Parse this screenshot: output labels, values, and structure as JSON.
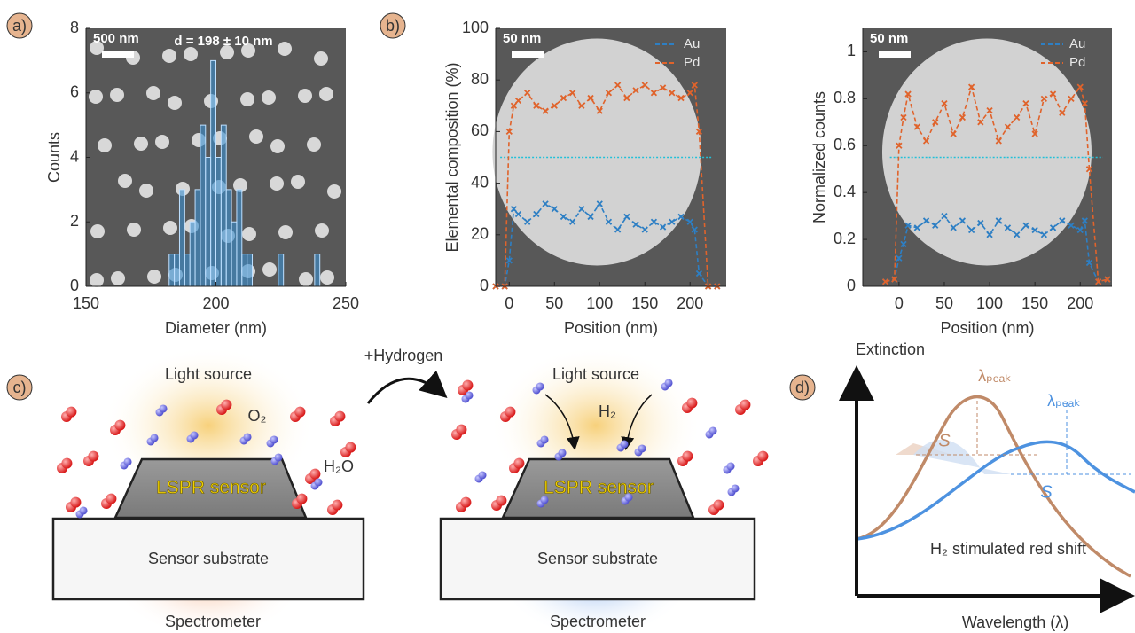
{
  "chart_data": [
    {
      "type": "histogram",
      "panel_label": "a)",
      "scale_bar": "500 nm",
      "annotation": "d = 198 ± 10 nm",
      "xlabel": "Diameter (nm)",
      "ylabel": "Counts",
      "color": "#3a8fd0",
      "bins": [
        182,
        184,
        186,
        188,
        190,
        192,
        194,
        196,
        198,
        200,
        202,
        204,
        206,
        208,
        210,
        212,
        214,
        216,
        218,
        220,
        222,
        224,
        226,
        228,
        230,
        232,
        234,
        236,
        238,
        240
      ],
      "values": [
        1,
        1,
        3,
        1,
        2,
        3,
        5,
        4,
        7,
        4,
        5,
        3,
        2,
        3,
        1,
        1,
        0,
        0,
        0,
        0,
        0,
        1,
        0,
        0,
        0,
        0,
        0,
        0,
        1
      ],
      "xlim": [
        150,
        250
      ],
      "ylim": [
        0,
        8
      ],
      "xticks": [
        150,
        200,
        250
      ],
      "yticks": [
        0,
        2,
        4,
        6,
        8
      ]
    },
    {
      "type": "line",
      "panel_label": "b)",
      "scale_bar": "50 nm",
      "xlabel": "Position (nm)",
      "ylabel": "Elemental composition (%)",
      "x": [
        -15,
        -5,
        0,
        5,
        10,
        20,
        30,
        40,
        50,
        60,
        70,
        80,
        90,
        100,
        110,
        120,
        130,
        140,
        150,
        160,
        170,
        180,
        190,
        200,
        205,
        210,
        220,
        230
      ],
      "series": [
        {
          "name": "Au",
          "color": "#2d7fc4",
          "values": [
            0,
            0,
            10,
            30,
            28,
            25,
            28,
            32,
            30,
            27,
            25,
            30,
            27,
            32,
            25,
            22,
            27,
            24,
            22,
            25,
            23,
            25,
            27,
            25,
            22,
            5,
            0,
            0
          ]
        },
        {
          "name": "Pd",
          "color": "#e0632b",
          "values": [
            0,
            0,
            60,
            70,
            72,
            75,
            70,
            68,
            70,
            73,
            75,
            70,
            73,
            68,
            75,
            78,
            73,
            76,
            78,
            75,
            77,
            75,
            73,
            75,
            78,
            60,
            0,
            0
          ]
        }
      ],
      "reference_line": {
        "value": 50,
        "color": "#22c0d8"
      },
      "xlim": [
        -15,
        240
      ],
      "ylim": [
        0,
        100
      ],
      "xticks": [
        0,
        50,
        100,
        150,
        200
      ],
      "yticks": [
        0,
        20,
        40,
        60,
        80,
        100
      ]
    },
    {
      "type": "line",
      "scale_bar": "50 nm",
      "xlabel": "Position (nm)",
      "ylabel": "Normalized counts",
      "x": [
        -15,
        -5,
        0,
        5,
        10,
        20,
        30,
        40,
        50,
        60,
        70,
        80,
        90,
        100,
        110,
        120,
        130,
        140,
        150,
        160,
        170,
        180,
        190,
        200,
        205,
        210,
        220,
        230
      ],
      "series": [
        {
          "name": "Au",
          "color": "#2d7fc4",
          "values": [
            0.02,
            0.03,
            0.12,
            0.18,
            0.26,
            0.25,
            0.28,
            0.26,
            0.3,
            0.25,
            0.28,
            0.24,
            0.27,
            0.22,
            0.28,
            0.25,
            0.22,
            0.26,
            0.24,
            0.22,
            0.25,
            0.28,
            0.26,
            0.24,
            0.28,
            0.1,
            0.02,
            0.03
          ]
        },
        {
          "name": "Pd",
          "color": "#e0632b",
          "values": [
            0.02,
            0.03,
            0.6,
            0.72,
            0.82,
            0.68,
            0.62,
            0.7,
            0.78,
            0.65,
            0.72,
            0.85,
            0.7,
            0.75,
            0.62,
            0.68,
            0.72,
            0.78,
            0.65,
            0.8,
            0.82,
            0.74,
            0.8,
            0.85,
            0.78,
            0.5,
            0.02,
            0.03
          ]
        }
      ],
      "reference_line": {
        "value": 0.55,
        "color": "#22c0d8"
      },
      "xlim": [
        -40,
        235
      ],
      "ylim": [
        0,
        1.1
      ],
      "xticks": [
        0,
        50,
        100,
        150,
        200
      ],
      "yticks": [
        0,
        0.2,
        0.4,
        0.6,
        0.8,
        1
      ]
    }
  ],
  "panel_c": {
    "label": "c)",
    "hydrogen": "+Hydrogen",
    "left": {
      "light": "Light source",
      "o2": "O₂",
      "h2o": "H₂O",
      "sensor": "LSPR sensor",
      "substrate": "Sensor substrate",
      "spectrometer": "Spectrometer"
    },
    "right": {
      "light": "Light source",
      "h2": "H₂",
      "sensor": "LSPR sensor",
      "substrate": "Sensor substrate",
      "spectrometer": "Spectrometer"
    }
  },
  "panel_d": {
    "label": "d)",
    "ylabel": "Extinction",
    "xlabel": "Wavelength (λ)",
    "peak_before": "λₚₑₐₖ",
    "peak_after": "λₚₑₐₖ",
    "s_before": "S",
    "s_after": "S",
    "caption": "H₂ stimulated red shift"
  }
}
